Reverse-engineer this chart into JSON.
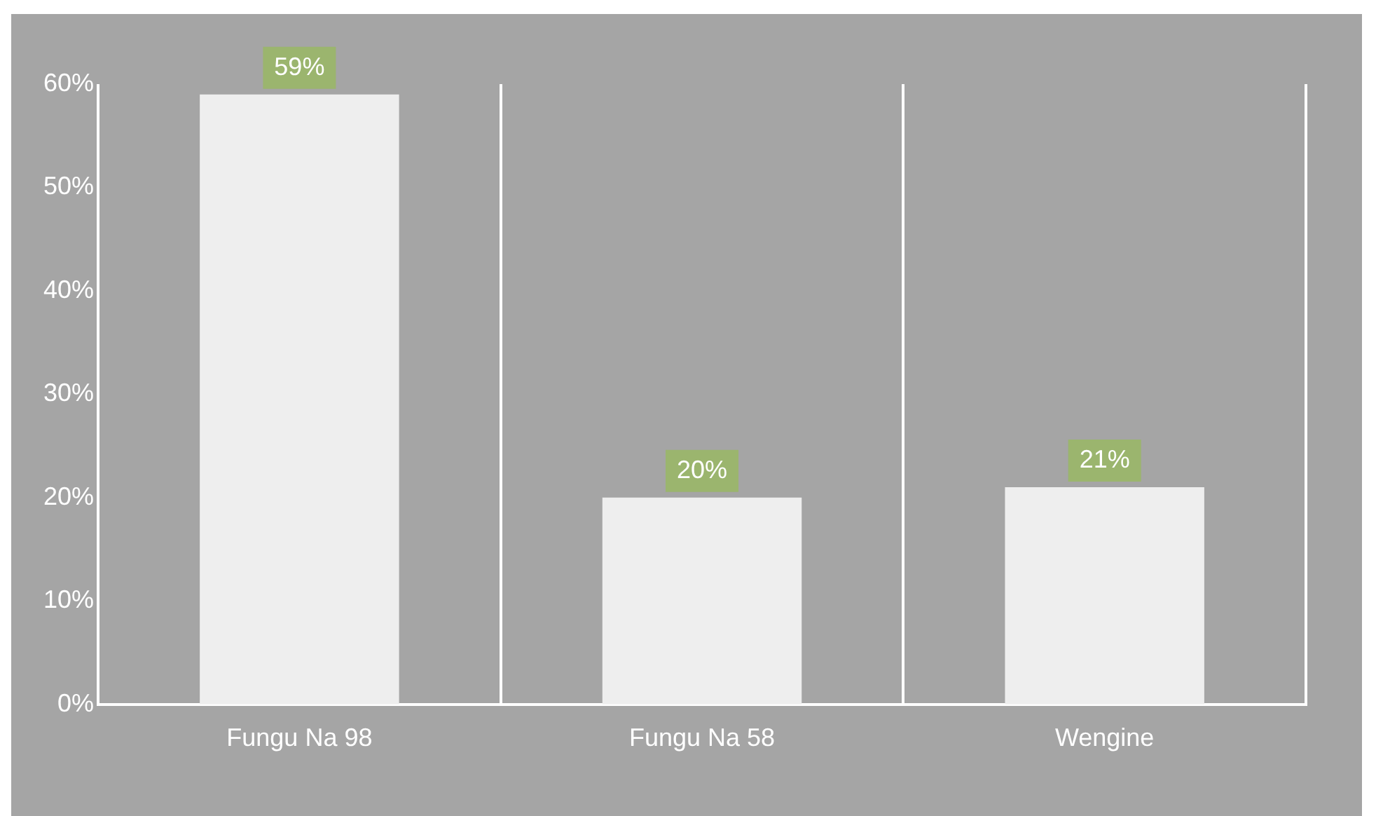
{
  "chart_data": {
    "type": "bar",
    "categories": [
      "Fungu Na 98",
      "Fungu Na 58",
      "Wengine"
    ],
    "values": [
      59,
      20,
      21
    ],
    "color": "#eeeeee",
    "value_labels": [
      "59%",
      "20%",
      "21%"
    ],
    "ylim": [
      0,
      60
    ],
    "yticks": [
      {
        "value": 0,
        "label": "0%"
      },
      {
        "value": 10,
        "label": "10%"
      },
      {
        "value": 20,
        "label": "20%"
      },
      {
        "value": 30,
        "label": "30%"
      },
      {
        "value": 40,
        "label": "40%"
      },
      {
        "value": 50,
        "label": "50%"
      },
      {
        "value": 60,
        "label": "60%"
      }
    ],
    "grid": "x",
    "legend": false
  }
}
